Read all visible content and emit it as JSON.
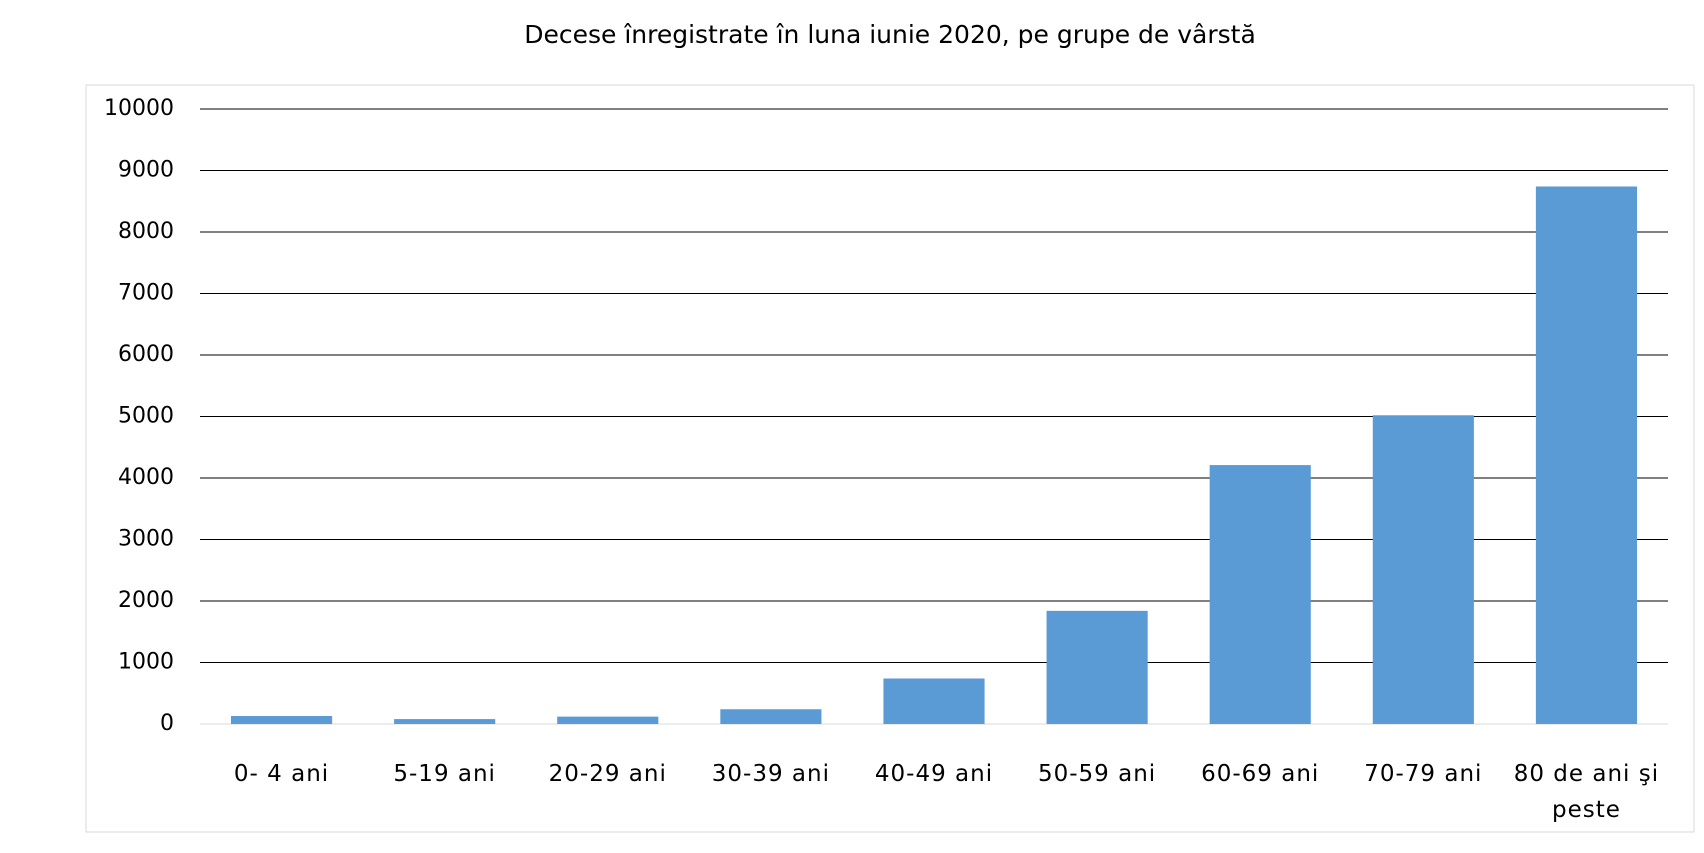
{
  "chart_data": {
    "type": "bar",
    "title": "Decese înregistrate în luna iunie 2020, pe grupe de vârstă",
    "categories": [
      "0- 4 ani",
      "5-19 ani",
      "20-29 ani",
      "30-39 ani",
      "40-49 ani",
      "50-59 ani",
      "60-69 ani",
      "70-79 ani",
      "80 de ani şi peste"
    ],
    "values": [
      130,
      80,
      120,
      240,
      740,
      1840,
      4210,
      5020,
      8740
    ],
    "color": "#5b9bd5",
    "ylim": [
      0,
      10000
    ],
    "yticks": [
      0,
      1000,
      2000,
      3000,
      4000,
      5000,
      6000,
      7000,
      8000,
      9000,
      10000
    ],
    "grid": true
  }
}
